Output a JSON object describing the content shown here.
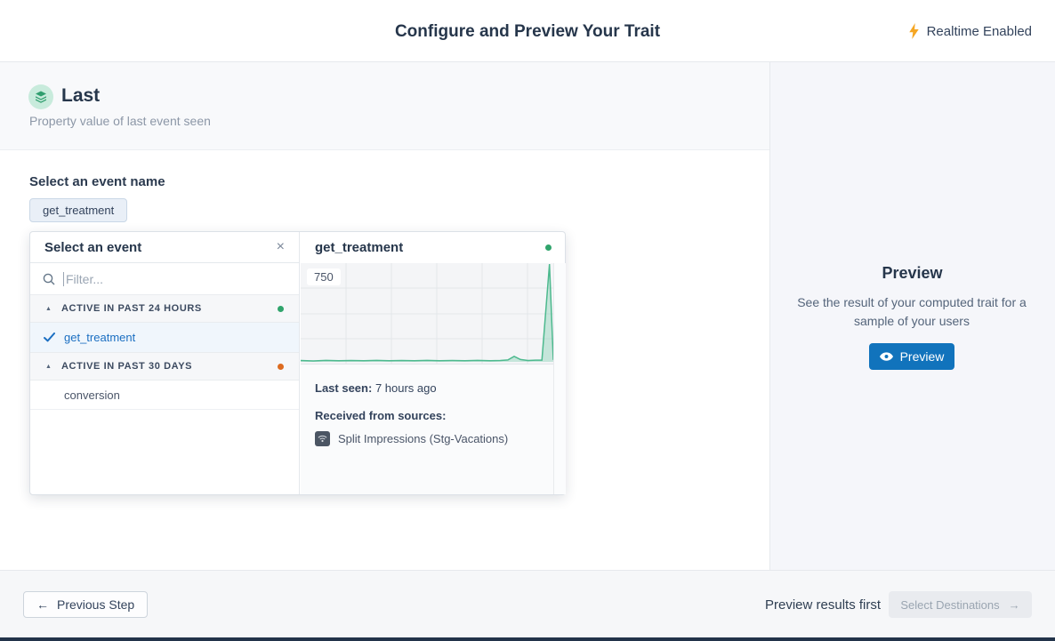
{
  "header": {
    "title": "Configure and Preview Your Trait",
    "realtime_label": "Realtime Enabled"
  },
  "trait": {
    "name": "Last",
    "description": "Property value of last event seen"
  },
  "event_select": {
    "label": "Select an event name",
    "selected_chip": "get_treatment"
  },
  "popover": {
    "title": "Select an event",
    "filter_placeholder": "Filter...",
    "groups": [
      {
        "label": "ACTIVE IN PAST 24 HOURS",
        "items": [
          {
            "label": "get_treatment",
            "selected": true
          }
        ]
      },
      {
        "label": "ACTIVE IN PAST 30 DAYS",
        "items": [
          {
            "label": "conversion",
            "selected": false
          }
        ]
      }
    ],
    "detail": {
      "title": "get_treatment",
      "last_seen_label": "Last seen:",
      "last_seen_value": "7 hours ago",
      "sources_label": "Received from sources:",
      "source_name": "Split Impressions (Stg-Vacations)"
    }
  },
  "chart_data": {
    "type": "area",
    "title": "get_treatment event volume",
    "ylim": [
      0,
      750
    ],
    "ytick_label": "750",
    "xlabel": "",
    "ylabel": "",
    "grid": true,
    "legend": false,
    "line_color": "#4CB98E",
    "fill_color": "rgba(76,185,142,0.28)",
    "series": [
      {
        "name": "get_treatment",
        "points": [
          [
            0.0,
            10
          ],
          [
            0.05,
            7
          ],
          [
            0.1,
            11
          ],
          [
            0.15,
            8
          ],
          [
            0.2,
            10
          ],
          [
            0.25,
            8
          ],
          [
            0.3,
            11
          ],
          [
            0.35,
            9
          ],
          [
            0.4,
            10
          ],
          [
            0.45,
            8
          ],
          [
            0.5,
            11
          ],
          [
            0.55,
            9
          ],
          [
            0.6,
            10
          ],
          [
            0.65,
            8
          ],
          [
            0.7,
            11
          ],
          [
            0.75,
            9
          ],
          [
            0.79,
            10
          ],
          [
            0.82,
            14
          ],
          [
            0.845,
            42
          ],
          [
            0.87,
            18
          ],
          [
            0.9,
            10
          ],
          [
            0.93,
            13
          ],
          [
            0.955,
            13
          ],
          [
            0.985,
            750
          ],
          [
            1.0,
            15
          ]
        ]
      }
    ]
  },
  "preview_panel": {
    "title": "Preview",
    "description": "See the result of your computed trait for a sample of your users",
    "button_label": "Preview"
  },
  "footer": {
    "previous_label": "Previous Step",
    "hint": "Preview results first",
    "next_label": "Select Destinations"
  },
  "icons": {
    "close": "×",
    "prev_arrow": "←",
    "next_arrow": "→",
    "collapse": "▲"
  },
  "colors": {
    "green_status": "#30A46C",
    "orange_status": "#DD6B20",
    "accent_blue": "#1173BC",
    "selected_blue": "#1B6FC2",
    "bolt_yellow": "#F5A623"
  }
}
